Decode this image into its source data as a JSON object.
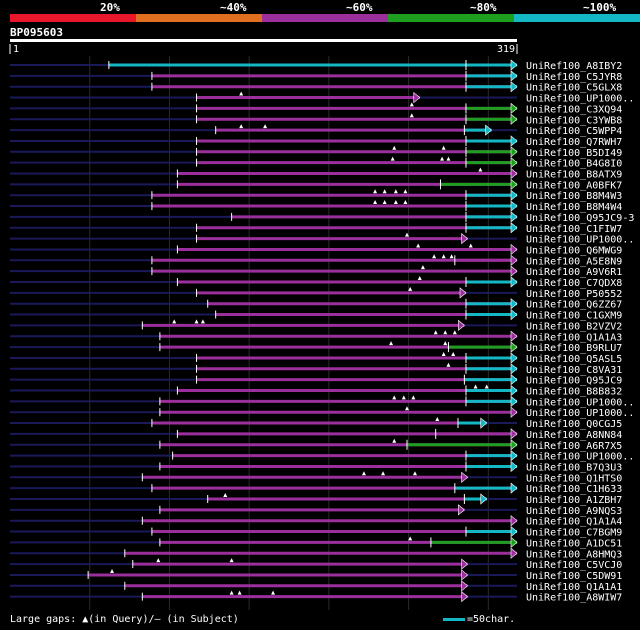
{
  "chart_data": {
    "type": "alignment-overview",
    "query": {
      "name": "BP095603",
      "start_label": "1",
      "end_label": "319",
      "length": 319
    },
    "legend": [
      {
        "label": "20%",
        "color": "#e8172c"
      },
      {
        "label": "~40%",
        "color": "#e0701f"
      },
      {
        "label": "~60%",
        "color": "#9b2f9b"
      },
      {
        "label": "~80%",
        "color": "#1f9f1f"
      },
      {
        "label": "~100%",
        "color": "#14b8c4"
      }
    ],
    "footer": {
      "gap_text": "Large gaps: ▲(in Query)/— (in Subject)",
      "scale_text": "=50char."
    },
    "hits": [
      {
        "name": "UniRef100_A8IBY2",
        "start": 63,
        "end": 319,
        "color": "#14b8c4",
        "mid": 287,
        "mid_color": "#14b8c4",
        "tick_at": []
      },
      {
        "name": "UniRef100_C5JYR8",
        "start": 90,
        "end": 319,
        "color": "#9b2f9b",
        "mid": 287,
        "mid_color": "#14b8c4",
        "tick_at": []
      },
      {
        "name": "UniRef100_C5GLX8",
        "start": 90,
        "end": 319,
        "color": "#9b2f9b",
        "mid": 287,
        "mid_color": "#14b8c4",
        "tick_at": []
      },
      {
        "name": "UniRef100_UP1000..",
        "start": 118,
        "end": 258,
        "color": "#9b2f9b",
        "mid": null,
        "mid_color": null,
        "tick_at": [
          146
        ]
      },
      {
        "name": "UniRef100_C3XQ94",
        "start": 118,
        "end": 319,
        "color": "#9b2f9b",
        "mid": 287,
        "mid_color": "#1f9f1f",
        "tick_at": [
          253
        ]
      },
      {
        "name": "UniRef100_C3YWB8",
        "start": 118,
        "end": 319,
        "color": "#9b2f9b",
        "mid": 287,
        "mid_color": "#1f9f1f",
        "tick_at": [
          253
        ]
      },
      {
        "name": "UniRef100_C5WPP4",
        "start": 130,
        "end": 303,
        "color": "#9b2f9b",
        "mid": 286,
        "mid_color": "#14b8c4",
        "tick_at": [
          146,
          161
        ]
      },
      {
        "name": "UniRef100_Q7RWH7",
        "start": 118,
        "end": 319,
        "color": "#9b2f9b",
        "mid": 287,
        "mid_color": "#14b8c4",
        "tick_at": []
      },
      {
        "name": "UniRef100_B5DI49",
        "start": 118,
        "end": 319,
        "color": "#9b2f9b",
        "mid": 287,
        "mid_color": "#1f9f1f",
        "tick_at": [
          242,
          273
        ]
      },
      {
        "name": "UniRef100_B4G8I0",
        "start": 118,
        "end": 319,
        "color": "#9b2f9b",
        "mid": 287,
        "mid_color": "#1f9f1f",
        "tick_at": [
          241,
          272,
          276
        ]
      },
      {
        "name": "UniRef100_B8ATX9",
        "start": 106,
        "end": 319,
        "color": "#9b2f9b",
        "mid": null,
        "mid_color": null,
        "tick_at": [
          296
        ]
      },
      {
        "name": "UniRef100_A0BFK7",
        "start": 106,
        "end": 319,
        "color": "#9b2f9b",
        "mid": 271,
        "mid_color": "#1f9f1f",
        "tick_at": []
      },
      {
        "name": "UniRef100_B8M4W3",
        "start": 90,
        "end": 319,
        "color": "#9b2f9b",
        "mid": 287,
        "mid_color": "#14b8c4",
        "tick_at": [
          230,
          236,
          243,
          249
        ]
      },
      {
        "name": "UniRef100_B8M4W4",
        "start": 90,
        "end": 319,
        "color": "#9b2f9b",
        "mid": 287,
        "mid_color": "#14b8c4",
        "tick_at": [
          230,
          236,
          243,
          249
        ]
      },
      {
        "name": "UniRef100_Q95JC9-3",
        "start": 140,
        "end": 319,
        "color": "#9b2f9b",
        "mid": 287,
        "mid_color": "#14b8c4",
        "tick_at": []
      },
      {
        "name": "UniRef100_C1FIW7",
        "start": 118,
        "end": 319,
        "color": "#9b2f9b",
        "mid": 287,
        "mid_color": "#14b8c4",
        "tick_at": []
      },
      {
        "name": "UniRef100_UP1000..",
        "start": 118,
        "end": 288,
        "color": "#9b2f9b",
        "mid": null,
        "mid_color": null,
        "tick_at": [
          250
        ]
      },
      {
        "name": "UniRef100_Q6MWG9",
        "start": 106,
        "end": 319,
        "color": "#9b2f9b",
        "mid": null,
        "mid_color": null,
        "tick_at": [
          257,
          290
        ]
      },
      {
        "name": "UniRef100_A5E8N9",
        "start": 90,
        "end": 319,
        "color": "#9b2f9b",
        "mid": 280,
        "mid_color": "#9b2f9b",
        "tick_at": [
          267,
          273,
          278
        ]
      },
      {
        "name": "UniRef100_A9V6R1",
        "start": 90,
        "end": 319,
        "color": "#9b2f9b",
        "mid": null,
        "mid_color": null,
        "tick_at": [
          260
        ]
      },
      {
        "name": "UniRef100_C7QDX8",
        "start": 106,
        "end": 319,
        "color": "#9b2f9b",
        "mid": 287,
        "mid_color": "#14b8c4",
        "tick_at": [
          258
        ]
      },
      {
        "name": "UniRef100_P50552",
        "start": 118,
        "end": 287,
        "color": "#9b2f9b",
        "mid": null,
        "mid_color": null,
        "tick_at": [
          252
        ]
      },
      {
        "name": "UniRef100_Q6ZZ67",
        "start": 125,
        "end": 319,
        "color": "#9b2f9b",
        "mid": 287,
        "mid_color": "#14b8c4",
        "tick_at": []
      },
      {
        "name": "UniRef100_C1GXM9",
        "start": 130,
        "end": 319,
        "color": "#9b2f9b",
        "mid": 287,
        "mid_color": "#14b8c4",
        "tick_at": []
      },
      {
        "name": "UniRef100_B2VZV2",
        "start": 84,
        "end": 286,
        "color": "#9b2f9b",
        "mid": null,
        "mid_color": null,
        "tick_at": [
          104,
          118,
          122
        ]
      },
      {
        "name": "UniRef100_Q1A1A3",
        "start": 95,
        "end": 319,
        "color": "#9b2f9b",
        "mid": null,
        "mid_color": null,
        "tick_at": [
          268,
          274,
          280
        ]
      },
      {
        "name": "UniRef100_B9RLU7",
        "start": 95,
        "end": 319,
        "color": "#9b2f9b",
        "mid": 276,
        "mid_color": "#1f9f1f",
        "tick_at": [
          240,
          274
        ]
      },
      {
        "name": "UniRef100_Q5ASL5",
        "start": 118,
        "end": 319,
        "color": "#9b2f9b",
        "mid": 287,
        "mid_color": "#14b8c4",
        "tick_at": [
          273,
          279
        ]
      },
      {
        "name": "UniRef100_C8VA31",
        "start": 118,
        "end": 319,
        "color": "#9b2f9b",
        "mid": 287,
        "mid_color": "#14b8c4",
        "tick_at": [
          276
        ]
      },
      {
        "name": "UniRef100_Q95JC9",
        "start": 118,
        "end": 319,
        "color": "#9b2f9b",
        "mid": 286,
        "mid_color": "#14b8c4",
        "tick_at": []
      },
      {
        "name": "UniRef100_B8B832",
        "start": 106,
        "end": 319,
        "color": "#9b2f9b",
        "mid": 287,
        "mid_color": "#14b8c4",
        "tick_at": [
          293,
          300
        ]
      },
      {
        "name": "UniRef100_UP1000..",
        "start": 95,
        "end": 319,
        "color": "#9b2f9b",
        "mid": 287,
        "mid_color": "#14b8c4",
        "tick_at": [
          242,
          248,
          254
        ]
      },
      {
        "name": "UniRef100_UP1000..",
        "start": 95,
        "end": 319,
        "color": "#9b2f9b",
        "mid": null,
        "mid_color": null,
        "tick_at": [
          250
        ]
      },
      {
        "name": "UniRef100_Q0CGJ5",
        "start": 90,
        "end": 300,
        "color": "#9b2f9b",
        "mid": 282,
        "mid_color": "#14b8c4",
        "tick_at": [
          269
        ]
      },
      {
        "name": "UniRef100_A8NN84",
        "start": 106,
        "end": 319,
        "color": "#9b2f9b",
        "mid": 268,
        "mid_color": "#9b2f9b",
        "tick_at": []
      },
      {
        "name": "UniRef100_A6R7X5",
        "start": 95,
        "end": 319,
        "color": "#9b2f9b",
        "mid": 250,
        "mid_color": "#1f9f1f",
        "tick_at": [
          242
        ]
      },
      {
        "name": "UniRef100_UP1000..",
        "start": 103,
        "end": 319,
        "color": "#9b2f9b",
        "mid": 287,
        "mid_color": "#14b8c4",
        "tick_at": []
      },
      {
        "name": "UniRef100_B7Q3U3",
        "start": 95,
        "end": 319,
        "color": "#9b2f9b",
        "mid": 287,
        "mid_color": "#14b8c4",
        "tick_at": []
      },
      {
        "name": "UniRef100_Q1HTS0",
        "start": 84,
        "end": 288,
        "color": "#9b2f9b",
        "mid": null,
        "mid_color": null,
        "tick_at": [
          223,
          235,
          255
        ]
      },
      {
        "name": "UniRef100_C1H633",
        "start": 90,
        "end": 319,
        "color": "#9b2f9b",
        "mid": 280,
        "mid_color": "#14b8c4",
        "tick_at": []
      },
      {
        "name": "UniRef100_A1ZBH7",
        "start": 125,
        "end": 300,
        "color": "#9b2f9b",
        "mid": 286,
        "mid_color": "#14b8c4",
        "tick_at": [
          136
        ]
      },
      {
        "name": "UniRef100_A9NQS3",
        "start": 95,
        "end": 286,
        "color": "#9b2f9b",
        "mid": null,
        "mid_color": null,
        "tick_at": []
      },
      {
        "name": "UniRef100_Q1A1A4",
        "start": 84,
        "end": 319,
        "color": "#9b2f9b",
        "mid": null,
        "mid_color": null,
        "tick_at": []
      },
      {
        "name": "UniRef100_C7BGM9",
        "start": 90,
        "end": 319,
        "color": "#9b2f9b",
        "mid": 287,
        "mid_color": "#14b8c4",
        "tick_at": []
      },
      {
        "name": "UniRef100_A1DC51",
        "start": 95,
        "end": 319,
        "color": "#9b2f9b",
        "mid": 265,
        "mid_color": "#1f9f1f",
        "tick_at": [
          252
        ]
      },
      {
        "name": "UniRef100_A8HMQ3",
        "start": 73,
        "end": 319,
        "color": "#9b2f9b",
        "mid": null,
        "mid_color": null,
        "tick_at": []
      },
      {
        "name": "UniRef100_C5VCJ0",
        "start": 78,
        "end": 288,
        "color": "#9b2f9b",
        "mid": null,
        "mid_color": null,
        "tick_at": [
          94,
          140
        ]
      },
      {
        "name": "UniRef100_C5DW91",
        "start": 50,
        "end": 288,
        "color": "#9b2f9b",
        "mid": null,
        "mid_color": null,
        "tick_at": [
          65
        ]
      },
      {
        "name": "UniRef100_Q1A1A1",
        "start": 73,
        "end": 288,
        "color": "#9b2f9b",
        "mid": null,
        "mid_color": null,
        "tick_at": []
      },
      {
        "name": "UniRef100_A8WIW7",
        "start": 84,
        "end": 288,
        "color": "#9b2f9b",
        "mid": null,
        "mid_color": null,
        "tick_at": [
          140,
          145,
          166
        ]
      }
    ]
  }
}
